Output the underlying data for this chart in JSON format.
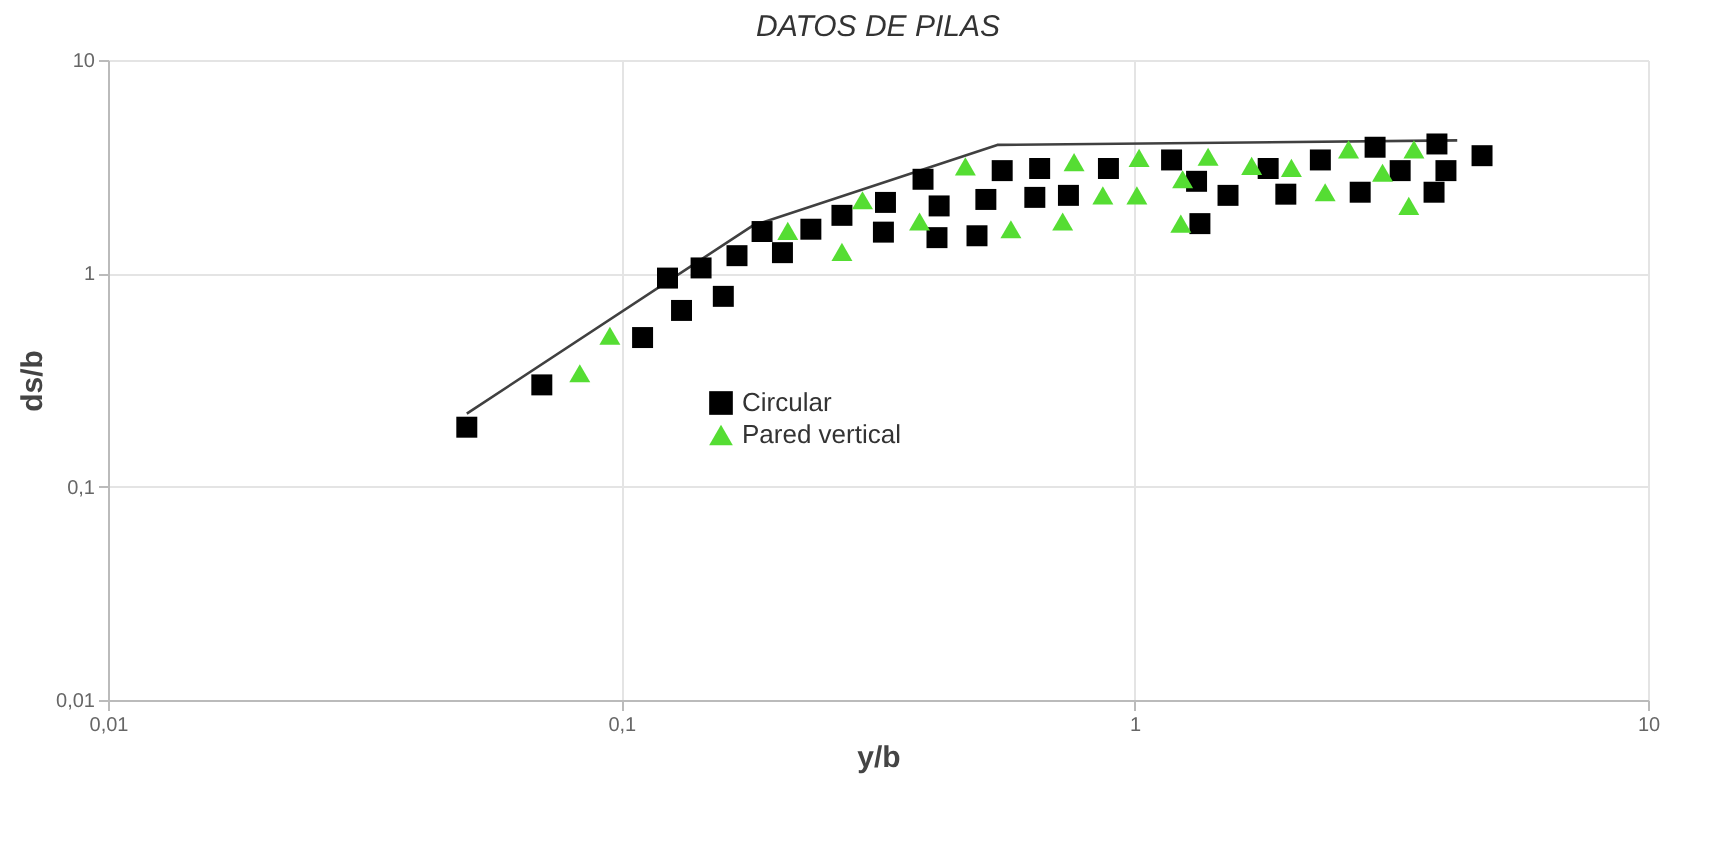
{
  "chart_data": {
    "type": "scatter",
    "title": "DATOS DE PILAS",
    "xlabel": "y/b",
    "ylabel": "ds/b",
    "log": "xy",
    "grid": true,
    "legend": "center",
    "xlim": [
      0.01,
      10
    ],
    "ylim": [
      0.01,
      10
    ],
    "xticks": [
      {
        "value": 0.01,
        "label": "0,01"
      },
      {
        "value": 0.1,
        "label": "0,1"
      },
      1,
      10
    ],
    "yticks": [
      {
        "value": 0.01,
        "label": "0,01"
      },
      {
        "value": 0.1,
        "label": "0,1"
      },
      1,
      10
    ],
    "series": [
      {
        "type": "line",
        "color": "#404040",
        "marker": "none",
        "x": [
          0.05,
          0.18,
          0.54,
          4.25
        ],
        "values": [
          0.22,
          1.67,
          4.0,
          4.2
        ]
      },
      {
        "name": "Circular",
        "color": "#000000",
        "marker": "square",
        "x": [
          0.05,
          0.07,
          0.11,
          0.123,
          0.131,
          0.143,
          0.158,
          0.168,
          0.188,
          0.206,
          0.234,
          0.269,
          0.324,
          0.327,
          0.387,
          0.412,
          0.416,
          0.493,
          0.513,
          0.552,
          0.653,
          0.639,
          0.743,
          0.889,
          1.18,
          1.32,
          1.34,
          1.52,
          1.82,
          1.97,
          2.3,
          2.75,
          2.94,
          3.29,
          3.83,
          3.88,
          4.04,
          4.75
        ],
        "values": [
          0.19,
          0.3,
          0.5,
          0.95,
          0.67,
          1.06,
          0.78,
          1.21,
          1.57,
          1.25,
          1.61,
          1.87,
          1.56,
          2.15,
          2.76,
          1.47,
          2.07,
          1.5,
          2.22,
          3.03,
          3.1,
          2.27,
          2.32,
          3.1,
          3.4,
          2.7,
          1.71,
          2.32,
          3.1,
          2.35,
          3.4,
          2.4,
          3.9,
          3.03,
          2.4,
          4.04,
          3.03,
          3.56
        ]
      },
      {
        "name": "Pared vertical",
        "color": "#55dd33",
        "marker": "triangle",
        "x": [
          0.083,
          0.095,
          0.211,
          0.269,
          0.295,
          0.381,
          0.468,
          0.574,
          0.724,
          0.762,
          0.867,
          1.02,
          1.01,
          1.23,
          1.24,
          1.39,
          1.69,
          2.02,
          2.35,
          2.61,
          3.04,
          3.42,
          3.5
        ],
        "values": [
          0.34,
          0.51,
          1.58,
          1.26,
          2.2,
          1.75,
          3.17,
          1.61,
          1.75,
          3.32,
          2.32,
          3.48,
          2.32,
          1.71,
          2.76,
          3.52,
          3.19,
          3.12,
          2.4,
          3.81,
          2.96,
          2.07,
          3.81
        ]
      }
    ]
  }
}
